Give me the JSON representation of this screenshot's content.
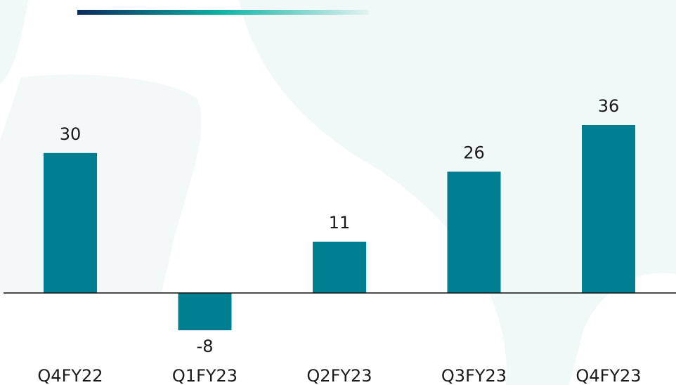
{
  "chart_data": {
    "type": "bar",
    "categories": [
      "Q4FY22",
      "Q1FY23",
      "Q2FY23",
      "Q3FY23",
      "Q4FY23"
    ],
    "values": [
      30,
      -8,
      11,
      26,
      36
    ],
    "color": "#007e91"
  }
}
